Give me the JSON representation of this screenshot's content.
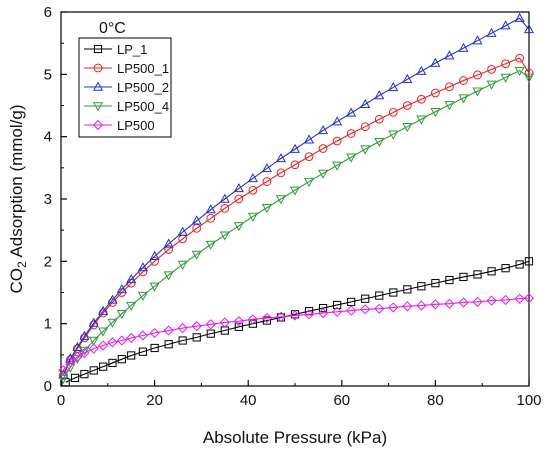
{
  "chart_data": {
    "type": "line",
    "legend_title": "0°C",
    "legend_position": "top-left",
    "xlabel": "Absolute Pressure (kPa)",
    "ylabel_prefix": "CO",
    "ylabel_sub": "2",
    "ylabel_suffix": " Adsorption (mmol/g)",
    "xlim": [
      0,
      100
    ],
    "ylim": [
      0,
      6
    ],
    "xticks": [
      "0",
      "20",
      "40",
      "60",
      "80",
      "100"
    ],
    "yticks": [
      "0",
      "1",
      "2",
      "3",
      "4",
      "5",
      "6"
    ],
    "grid": false,
    "series": [
      {
        "name": "LP_1",
        "color": "#000000",
        "marker": "square",
        "x": [
          1,
          3,
          5,
          7,
          9,
          11,
          13,
          15,
          17.5,
          20,
          23,
          26,
          29,
          32,
          35,
          38,
          41,
          44,
          47,
          50,
          53,
          56,
          59,
          62,
          65,
          68,
          71,
          74,
          77,
          80,
          83,
          86,
          89,
          92,
          95,
          98,
          100
        ],
        "values": [
          0.06,
          0.13,
          0.19,
          0.25,
          0.31,
          0.37,
          0.43,
          0.49,
          0.55,
          0.61,
          0.67,
          0.73,
          0.78,
          0.84,
          0.89,
          0.95,
          1.0,
          1.05,
          1.1,
          1.15,
          1.2,
          1.25,
          1.3,
          1.35,
          1.4,
          1.45,
          1.5,
          1.55,
          1.6,
          1.65,
          1.7,
          1.75,
          1.79,
          1.84,
          1.89,
          1.95,
          2.0
        ]
      },
      {
        "name": "LP500_1",
        "color": "#e8211c",
        "marker": "circle",
        "x": [
          0.5,
          2,
          3.5,
          5,
          7,
          9,
          11,
          13,
          15,
          17.5,
          20,
          23,
          26,
          29,
          32,
          35,
          38,
          41,
          44,
          47,
          50,
          53,
          56,
          59,
          62,
          65,
          68,
          71,
          74,
          77,
          80,
          83,
          86,
          89,
          92,
          95,
          98,
          100
        ],
        "values": [
          0.17,
          0.42,
          0.6,
          0.77,
          0.98,
          1.17,
          1.34,
          1.5,
          1.65,
          1.83,
          2.0,
          2.19,
          2.36,
          2.53,
          2.69,
          2.85,
          3.0,
          3.14,
          3.28,
          3.42,
          3.55,
          3.68,
          3.81,
          3.93,
          4.05,
          4.16,
          4.28,
          4.39,
          4.5,
          4.6,
          4.7,
          4.8,
          4.9,
          4.99,
          5.08,
          5.17,
          5.26,
          5.02
        ]
      },
      {
        "name": "LP500_2",
        "color": "#1f32d4",
        "marker": "triangle-up",
        "x": [
          0.5,
          2,
          3.5,
          5,
          7,
          9,
          11,
          13,
          15,
          17.5,
          20,
          23,
          26,
          29,
          32,
          35,
          38,
          41,
          44,
          47,
          50,
          53,
          56,
          59,
          62,
          65,
          68,
          71,
          74,
          77,
          80,
          83,
          86,
          89,
          92,
          95,
          98,
          100
        ],
        "values": [
          0.18,
          0.44,
          0.62,
          0.8,
          1.01,
          1.2,
          1.38,
          1.55,
          1.71,
          1.9,
          2.08,
          2.28,
          2.47,
          2.65,
          2.83,
          3.0,
          3.17,
          3.33,
          3.49,
          3.65,
          3.8,
          3.95,
          4.1,
          4.24,
          4.38,
          4.52,
          4.66,
          4.79,
          4.92,
          5.05,
          5.18,
          5.3,
          5.42,
          5.54,
          5.66,
          5.78,
          5.9,
          5.72
        ]
      },
      {
        "name": "LP500_4",
        "color": "#2e9b3b",
        "marker": "triangle-down",
        "x": [
          0.5,
          2,
          3.5,
          5,
          7,
          9,
          11,
          13,
          15,
          17.5,
          20,
          23,
          26,
          29,
          32,
          35,
          38,
          41,
          44,
          47,
          50,
          53,
          56,
          59,
          62,
          65,
          68,
          71,
          74,
          77,
          80,
          83,
          86,
          89,
          92,
          95,
          98,
          100
        ],
        "values": [
          0.12,
          0.3,
          0.44,
          0.57,
          0.73,
          0.88,
          1.02,
          1.16,
          1.29,
          1.45,
          1.6,
          1.78,
          1.95,
          2.11,
          2.27,
          2.42,
          2.57,
          2.72,
          2.86,
          3.0,
          3.14,
          3.28,
          3.41,
          3.54,
          3.67,
          3.8,
          3.92,
          4.04,
          4.16,
          4.28,
          4.4,
          4.51,
          4.62,
          4.73,
          4.84,
          4.95,
          5.06,
          4.95
        ]
      },
      {
        "name": "LP500",
        "color": "#e61ee6",
        "marker": "diamond",
        "x": [
          0.5,
          2,
          3.5,
          5,
          7,
          9,
          11,
          13,
          15,
          17.5,
          20,
          23,
          26,
          29,
          32,
          35,
          38,
          41,
          44,
          47,
          50,
          53,
          56,
          59,
          62,
          65,
          68,
          71,
          74,
          77,
          80,
          83,
          86,
          89,
          92,
          95,
          98,
          100
        ],
        "values": [
          0.25,
          0.38,
          0.47,
          0.53,
          0.6,
          0.65,
          0.7,
          0.73,
          0.77,
          0.81,
          0.85,
          0.89,
          0.93,
          0.96,
          0.99,
          1.02,
          1.04,
          1.07,
          1.09,
          1.11,
          1.13,
          1.15,
          1.17,
          1.19,
          1.21,
          1.23,
          1.24,
          1.26,
          1.28,
          1.29,
          1.31,
          1.32,
          1.34,
          1.35,
          1.37,
          1.38,
          1.4,
          1.41
        ]
      }
    ]
  }
}
